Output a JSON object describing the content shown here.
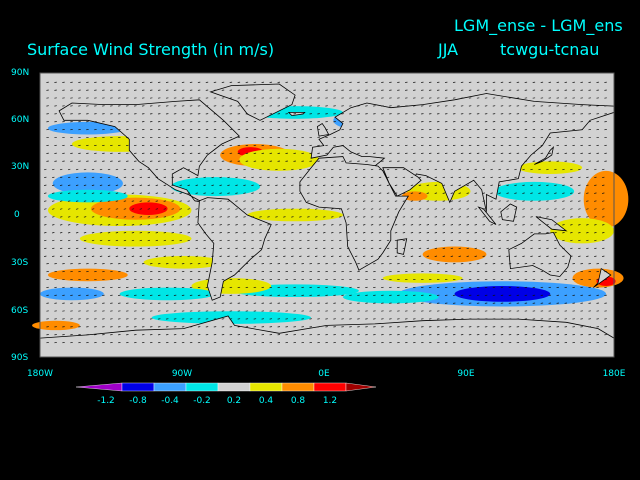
{
  "header": {
    "title": "Surface Wind Strength (in m/s)",
    "experiment": "LGM_ense - LGM_ens",
    "season": "JJA",
    "variable": "tcwgu-tcnau"
  },
  "map": {
    "projection": "cylindrical equidistant",
    "lon_range": [
      -180,
      180
    ],
    "lat_range": [
      -90,
      90
    ],
    "lat_labels": [
      "90N",
      "60N",
      "30N",
      "0",
      "30S",
      "60S",
      "90S"
    ],
    "lon_labels": [
      "180W",
      "90W",
      "0E",
      "90E",
      "180E"
    ],
    "land_color": "#d2d2d2",
    "vector_field": "wind arrows",
    "features": [
      {
        "name": "tropical-east-pacific-high",
        "lon": -120,
        "lat": 5,
        "level": 1.0
      },
      {
        "name": "north-atlantic-high",
        "lon": -50,
        "lat": 38,
        "level": 1.0
      },
      {
        "name": "north-pacific-low",
        "lon": -150,
        "lat": 20,
        "level": -0.8
      },
      {
        "name": "southern-ocean-low",
        "lon": 110,
        "lat": -50,
        "level": -1.0
      },
      {
        "name": "arabian-sea-high",
        "lon": 55,
        "lat": 12,
        "level": 0.6
      },
      {
        "name": "southwest-pacific-high",
        "lon": 170,
        "lat": -42,
        "level": 0.8
      },
      {
        "name": "scandinavia-low",
        "lon": 25,
        "lat": 60,
        "level": -0.8
      },
      {
        "name": "east-pacific-high",
        "lon": 175,
        "lat": 10,
        "level": 0.6
      }
    ]
  },
  "colorbar": {
    "levels": [
      "-1.2",
      "-0.8",
      "-0.4",
      "-0.2",
      "0.2",
      "0.4",
      "0.8",
      "1.2"
    ],
    "colors": [
      "#a000c8",
      "#0000e6",
      "#3ca0ff",
      "#00e6e6",
      "#d2d2d2",
      "#e6e600",
      "#ff8c00",
      "#ff0000",
      "#a00000"
    ]
  }
}
